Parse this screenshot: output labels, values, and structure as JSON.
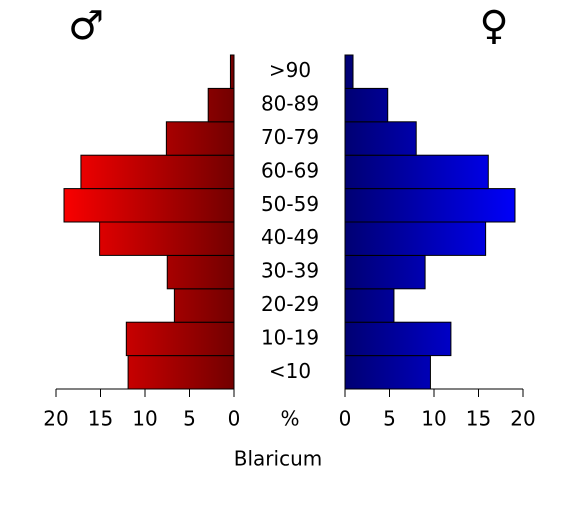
{
  "chart_data": {
    "type": "pyramid",
    "title": "Blaricum",
    "unit_label": "%",
    "categories": [
      "<10",
      "10-19",
      "20-29",
      "30-39",
      "40-49",
      "50-59",
      "60-69",
      "70-79",
      "80-89",
      ">90"
    ],
    "series": [
      {
        "name": "♂",
        "color": "#ff0000",
        "values": [
          11.9,
          12.1,
          6.7,
          7.5,
          15.1,
          19.1,
          17.2,
          7.6,
          2.9,
          0.4
        ]
      },
      {
        "name": "♀",
        "color": "#0000ff",
        "values": [
          9.6,
          11.9,
          5.5,
          9.0,
          15.8,
          19.1,
          16.1,
          8.0,
          4.8,
          0.9
        ]
      }
    ],
    "xlim": [
      0,
      20
    ],
    "xticks": [
      0,
      5,
      10,
      15,
      20
    ]
  }
}
